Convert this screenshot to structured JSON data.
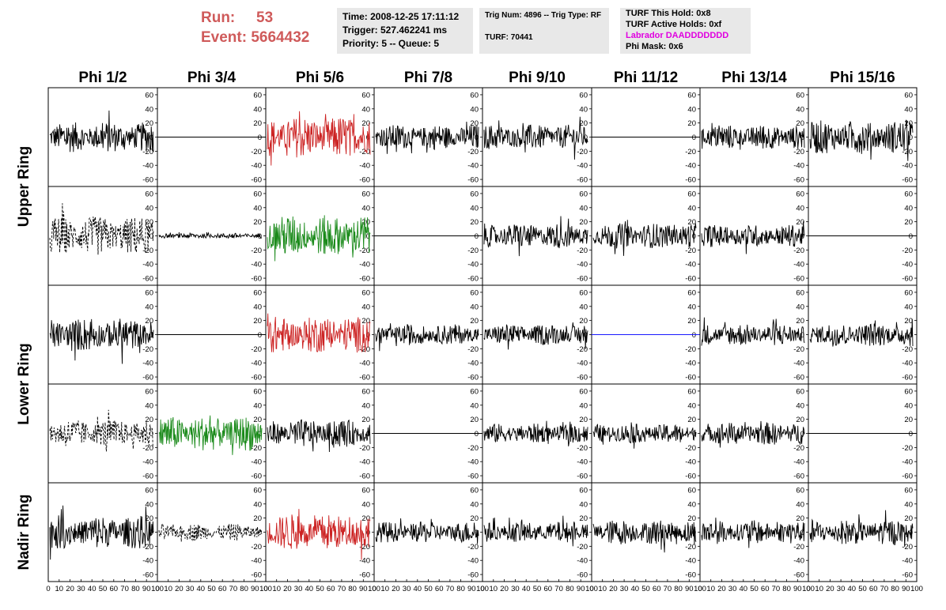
{
  "header": {
    "run_label": "Run:",
    "run_value": "53",
    "event_label": "Event:",
    "event_value": "5664432",
    "accent_color": "#cf5a5a"
  },
  "info_time": {
    "time": "Time: 2008-12-25 17:11:12",
    "trigger": "Trigger: 527.462241 ms",
    "priority": "Priority: 5 -- Queue: 5"
  },
  "info_trig": {
    "trig": "Trig Num: 4896 -- Trig Type: RF",
    "turf": "TURF: 70441"
  },
  "info_turf": {
    "hold": "TURF This Hold: 0x8",
    "active": "TURF Active Holds: 0xf",
    "labrador": "Labrador DAADDDDDDD",
    "phimask": "Phi Mask: 0x6"
  },
  "chart_data": {
    "type": "line",
    "columns": [
      "Phi 1/2",
      "Phi 3/4",
      "Phi 5/6",
      "Phi 7/8",
      "Phi 9/10",
      "Phi 11/12",
      "Phi 13/14",
      "Phi 15/16"
    ],
    "rings": [
      {
        "name": "Upper Ring",
        "rows": 2
      },
      {
        "name": "Lower Ring",
        "rows": 2
      },
      {
        "name": "Nadir Ring",
        "rows": 1
      }
    ],
    "ylim": [
      -70,
      70
    ],
    "yticks": [
      -60,
      -40,
      -20,
      0,
      20,
      40,
      60
    ],
    "xlim": [
      0,
      100
    ],
    "xticks": [
      0,
      10,
      20,
      30,
      40,
      50,
      60,
      70,
      80,
      90,
      100
    ],
    "colors": {
      "black": "#000000",
      "red": "#cc2222",
      "green": "#1a8a1a",
      "blue": "#1a1aff"
    },
    "panels": [
      [
        {
          "style": "noise",
          "color": "black",
          "amp": 22
        },
        {
          "style": "flat",
          "color": "black"
        },
        {
          "style": "noise",
          "color": "red",
          "amp": 30
        },
        {
          "style": "noise",
          "color": "black",
          "amp": 18
        },
        {
          "style": "noise",
          "color": "black",
          "amp": 18
        },
        {
          "style": "flat",
          "color": "black"
        },
        {
          "style": "noise",
          "color": "black",
          "amp": 18
        },
        {
          "style": "noise",
          "color": "black",
          "amp": 24
        }
      ],
      [
        {
          "style": "dashed",
          "color": "black",
          "amp": 28
        },
        {
          "style": "noise",
          "color": "black",
          "amp": 4
        },
        {
          "style": "noise",
          "color": "green",
          "amp": 30
        },
        {
          "style": "flat",
          "color": "black"
        },
        {
          "style": "noise",
          "color": "black",
          "amp": 18
        },
        {
          "style": "noise",
          "color": "black",
          "amp": 18
        },
        {
          "style": "noise",
          "color": "black",
          "amp": 16
        },
        {
          "style": "flat",
          "color": "black"
        }
      ],
      [
        {
          "style": "noise",
          "color": "black",
          "amp": 24
        },
        {
          "style": "flat",
          "color": "black"
        },
        {
          "style": "noise",
          "color": "red",
          "amp": 26
        },
        {
          "style": "noise",
          "color": "black",
          "amp": 15
        },
        {
          "style": "noise",
          "color": "black",
          "amp": 15
        },
        {
          "style": "flat",
          "color": "blue"
        },
        {
          "style": "noise",
          "color": "black",
          "amp": 16
        },
        {
          "style": "noise",
          "color": "black",
          "amp": 17
        }
      ],
      [
        {
          "style": "dashed",
          "color": "black",
          "amp": 20
        },
        {
          "style": "noise",
          "color": "green",
          "amp": 25
        },
        {
          "style": "noise",
          "color": "black",
          "amp": 20
        },
        {
          "style": "flat",
          "color": "black"
        },
        {
          "style": "noise",
          "color": "black",
          "amp": 14
        },
        {
          "style": "noise",
          "color": "black",
          "amp": 14
        },
        {
          "style": "noise",
          "color": "black",
          "amp": 16
        },
        {
          "style": "flat",
          "color": "black"
        }
      ],
      [
        {
          "style": "noise",
          "color": "black",
          "amp": 24
        },
        {
          "style": "dashed",
          "color": "black",
          "amp": 12
        },
        {
          "style": "noise",
          "color": "red",
          "amp": 26
        },
        {
          "style": "noise",
          "color": "black",
          "amp": 15
        },
        {
          "style": "noise",
          "color": "black",
          "amp": 15
        },
        {
          "style": "noise",
          "color": "black",
          "amp": 18
        },
        {
          "style": "noise",
          "color": "black",
          "amp": 17
        },
        {
          "style": "noise",
          "color": "black",
          "amp": 18
        }
      ]
    ]
  }
}
